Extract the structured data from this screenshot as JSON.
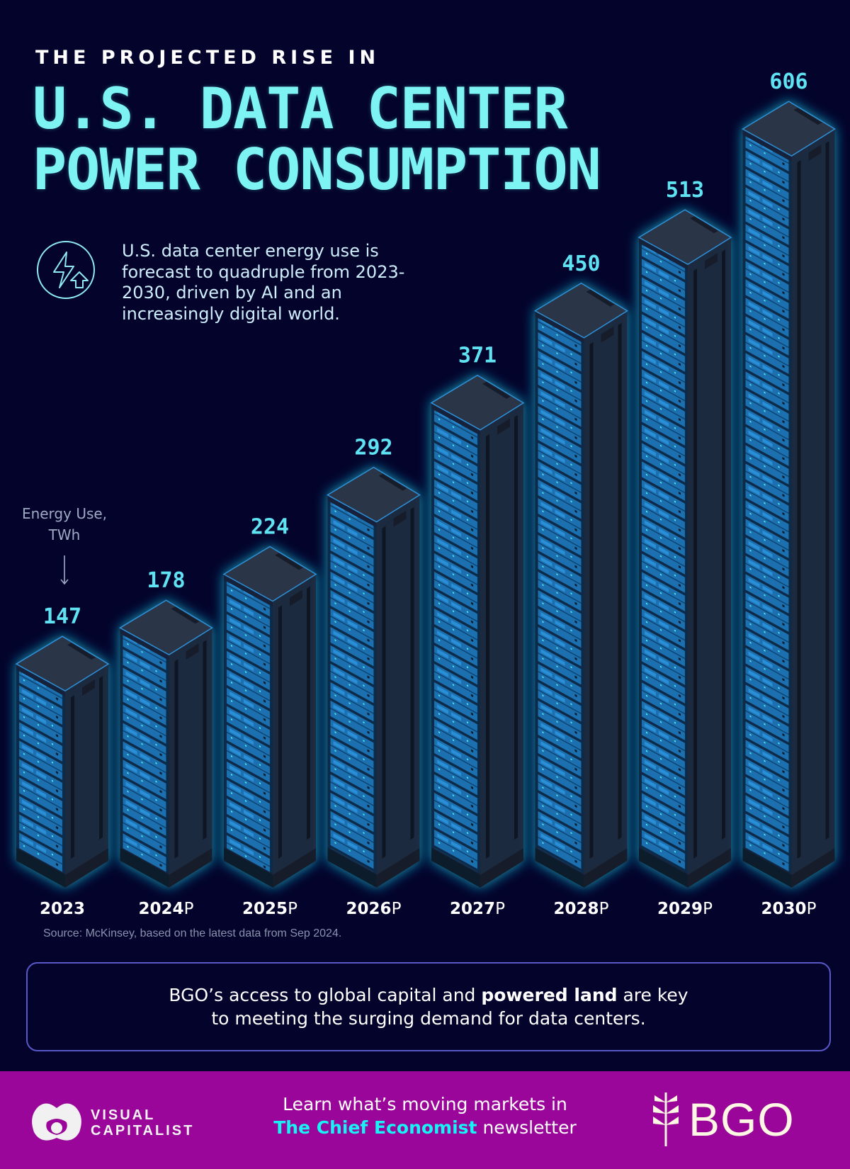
{
  "header": {
    "kicker": "THE PROJECTED RISE IN",
    "title_line1": "U.S. DATA CENTER",
    "title_line2": "POWER CONSUMPTION"
  },
  "description": {
    "icon": "lightning-bolt-arrow-up-icon",
    "text": "U.S. data center energy use is forecast to quadruple from 2023-2030, driven by AI and an increasingly digital world."
  },
  "chart_data": {
    "type": "bar",
    "style": "isometric server racks",
    "unit_label": "Energy Use, TWh",
    "categories": [
      "2023",
      "2024P",
      "2025P",
      "2026P",
      "2027P",
      "2028P",
      "2029P",
      "2030P"
    ],
    "category_years": [
      "2023",
      "2024",
      "2025",
      "2026",
      "2027",
      "2028",
      "2029",
      "2030"
    ],
    "category_suffix": [
      "",
      "P",
      "P",
      "P",
      "P",
      "P",
      "P",
      "P"
    ],
    "values": [
      147,
      178,
      224,
      292,
      371,
      450,
      513,
      606
    ],
    "data_labels": [
      "147",
      "178",
      "224",
      "292",
      "371",
      "450",
      "513",
      "606"
    ],
    "colors": {
      "label": "#5fe3f3",
      "glow": "#19d6f0",
      "rack": "#1e2a3c",
      "server": "#1a78c0"
    }
  },
  "source": "Source: McKinsey, based on the latest data from Sep 2024.",
  "callout": {
    "before": "BGO’s access to global capital and ",
    "bold": "powered land",
    "after": " are key",
    "line2": "to meeting the surging demand for data centers."
  },
  "footer": {
    "line1": "Learn what’s moving markets in",
    "highlight": "The Chief Economist",
    "line2_rest": " newsletter",
    "left_logo": "VISUAL CAPITALIST",
    "right_logo": "BGO",
    "background": "#9a0699"
  }
}
